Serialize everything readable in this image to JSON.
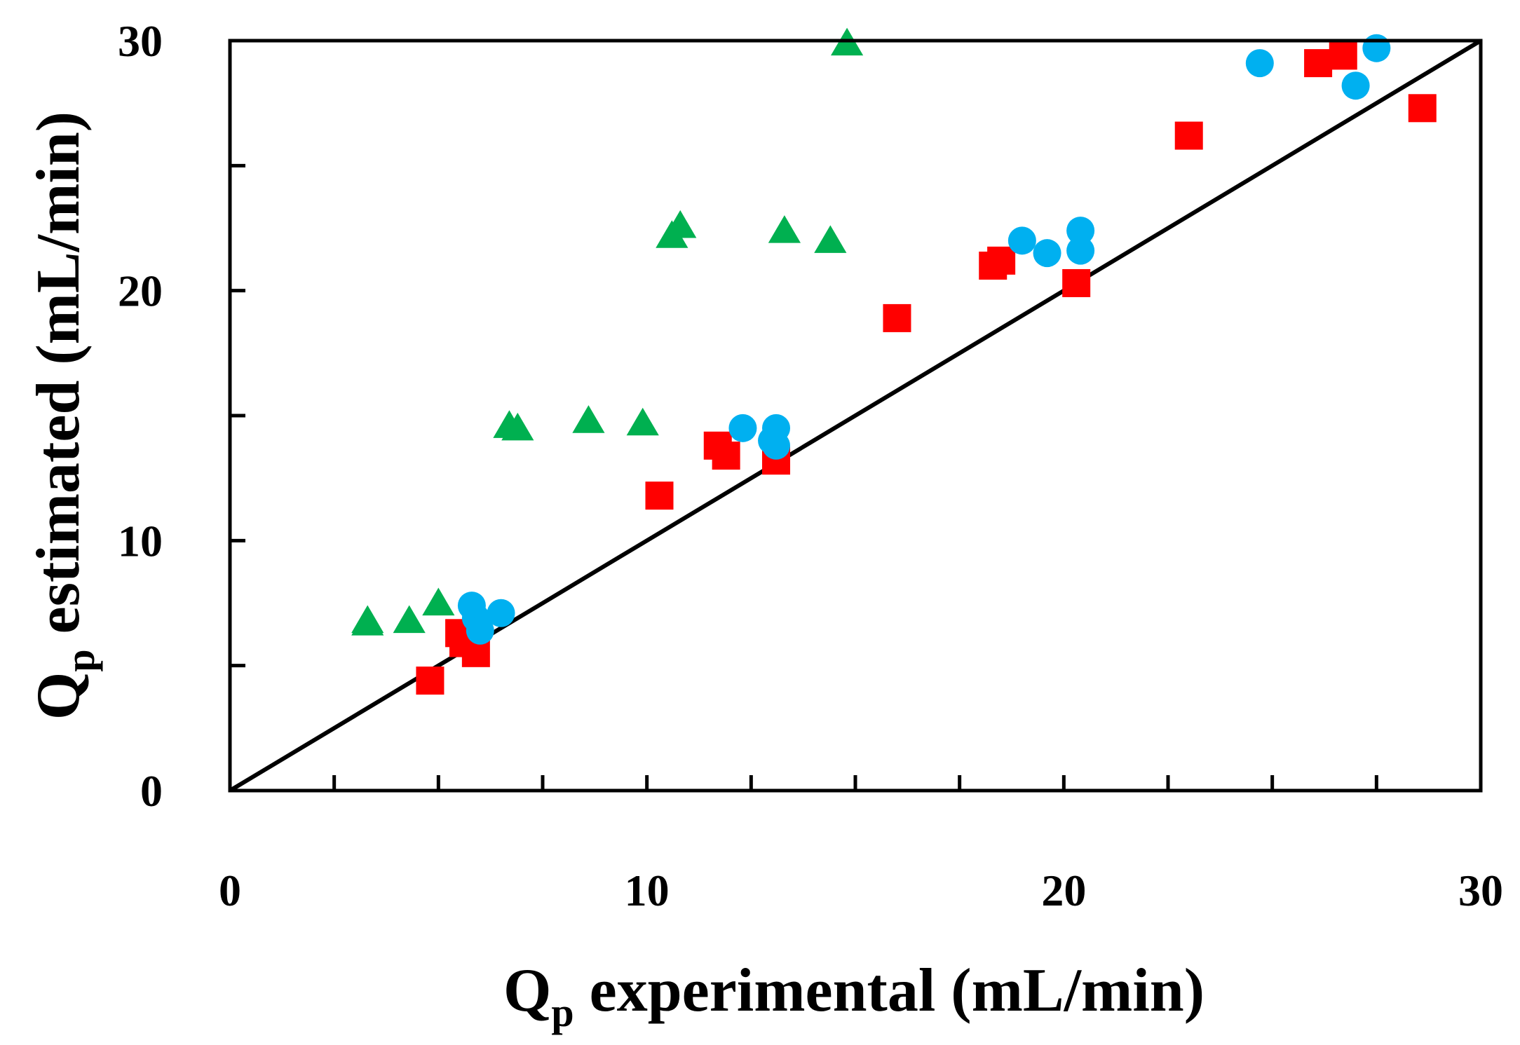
{
  "chart_data": {
    "type": "scatter",
    "xlabel": {
      "main": "Q",
      "sub": "p",
      "rest": " experimental (mL/min)"
    },
    "ylabel": {
      "main": "Q",
      "sub": "p",
      "rest": " estimated  (mL/min)"
    },
    "xlim": [
      0,
      30
    ],
    "ylim": [
      0,
      30
    ],
    "xticks": [
      "0",
      "10",
      "20",
      "30"
    ],
    "yticks": [
      "0",
      "10",
      "20",
      "30"
    ],
    "x_minor_step": 2.5,
    "y_minor_step": 5,
    "grid": false,
    "reference_line": {
      "x": [
        0,
        30
      ],
      "y": [
        0,
        30
      ],
      "color": "#000000"
    },
    "series": [
      {
        "marker": "square",
        "color": "#ff0000",
        "points": [
          [
            4.8,
            4.4
          ],
          [
            5.5,
            6.3
          ],
          [
            5.6,
            5.9
          ],
          [
            5.9,
            5.5
          ],
          [
            10.3,
            11.8
          ],
          [
            11.7,
            13.8
          ],
          [
            11.9,
            13.4
          ],
          [
            13.1,
            13.2
          ],
          [
            16.0,
            18.9
          ],
          [
            18.3,
            21.0
          ],
          [
            18.5,
            21.2
          ],
          [
            20.3,
            20.3
          ],
          [
            23.0,
            26.2
          ],
          [
            26.1,
            29.1
          ],
          [
            26.7,
            29.4
          ],
          [
            28.6,
            27.3
          ]
        ]
      },
      {
        "marker": "circle",
        "color": "#00b0f0",
        "points": [
          [
            5.8,
            7.4
          ],
          [
            5.9,
            6.9
          ],
          [
            6.0,
            6.4
          ],
          [
            6.5,
            7.1
          ],
          [
            12.3,
            14.5
          ],
          [
            13.0,
            14.0
          ],
          [
            13.1,
            13.8
          ],
          [
            13.1,
            14.5
          ],
          [
            19.0,
            22.0
          ],
          [
            19.6,
            21.5
          ],
          [
            20.4,
            21.6
          ],
          [
            20.4,
            22.4
          ],
          [
            24.7,
            29.1
          ],
          [
            27.0,
            28.2
          ],
          [
            27.5,
            29.7
          ]
        ]
      },
      {
        "marker": "triangle",
        "color": "#00b050",
        "points": [
          [
            3.3,
            6.8
          ],
          [
            3.3,
            6.7
          ],
          [
            4.3,
            6.8
          ],
          [
            5.0,
            7.5
          ],
          [
            6.7,
            14.6
          ],
          [
            6.9,
            14.5
          ],
          [
            8.6,
            14.8
          ],
          [
            9.9,
            14.7
          ],
          [
            10.6,
            22.2
          ],
          [
            10.8,
            22.6
          ],
          [
            13.3,
            22.4
          ],
          [
            14.4,
            22.0
          ],
          [
            14.8,
            29.9
          ]
        ]
      }
    ]
  }
}
